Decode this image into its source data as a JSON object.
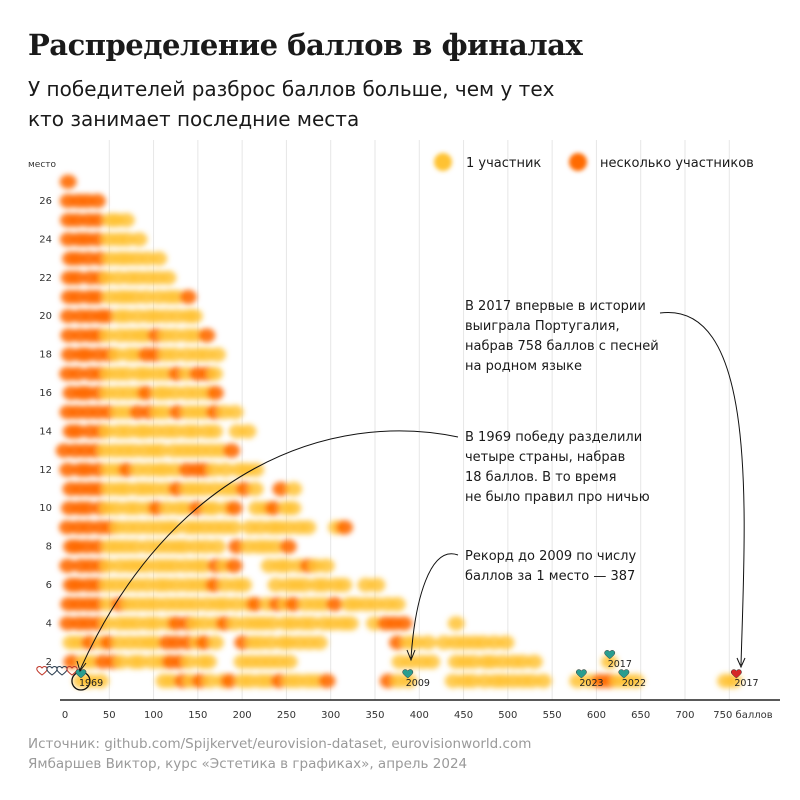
{
  "title": "Распределение баллов в финалах",
  "subtitle": "У победителей разброс баллов больше, чем у тех кто занимает последние места",
  "source": "Источник: github.com/Spijkervet/eurovision-dataset, eurovisionworld.com",
  "credit": "Ямбаршев Виктор, курс «Эстетика в графиках», апрель 2024",
  "legend": {
    "single": "1 участник",
    "multi": "несколько участников"
  },
  "colors": {
    "single": "#ffc233",
    "multi": "#ff6a00",
    "grid": "#e6e6e6",
    "axis": "#222222"
  },
  "chart_data": {
    "type": "scatter",
    "title": "Распределение баллов в финалах",
    "ylabel": "место",
    "xlabel": "баллов",
    "xlim": [
      0,
      790
    ],
    "ylim": [
      0.5,
      27.5
    ],
    "xticks": [
      0,
      50,
      100,
      150,
      200,
      250,
      300,
      350,
      400,
      450,
      500,
      550,
      600,
      650,
      700,
      750
    ],
    "yticks": [
      2,
      4,
      6,
      8,
      10,
      12,
      14,
      16,
      18,
      20,
      22,
      24,
      26
    ],
    "x_unit_label": "750 баллов",
    "grid": "vertical",
    "legend_position": "top-right",
    "rows": [
      {
        "place": 1,
        "ranges": [
          [
            18,
            40
          ],
          [
            110,
            300
          ],
          [
            365,
            390
          ],
          [
            440,
            540
          ],
          [
            580,
            650
          ],
          [
            745,
            760
          ]
        ]
      },
      {
        "place": 2,
        "ranges": [
          [
            10,
            170
          ],
          [
            200,
            260
          ],
          [
            380,
            420
          ],
          [
            440,
            530
          ],
          [
            615,
            625
          ]
        ]
      },
      {
        "place": 3,
        "ranges": [
          [
            5,
            180
          ],
          [
            200,
            290
          ],
          [
            375,
            415
          ],
          [
            430,
            500
          ]
        ]
      },
      {
        "place": 4,
        "ranges": [
          [
            5,
            160
          ],
          [
            170,
            330
          ],
          [
            350,
            390
          ],
          [
            440,
            450
          ]
        ]
      },
      {
        "place": 5,
        "ranges": [
          [
            5,
            140
          ],
          [
            150,
            310
          ],
          [
            320,
            380
          ]
        ]
      },
      {
        "place": 6,
        "ranges": [
          [
            5,
            210
          ],
          [
            240,
            320
          ],
          [
            340,
            360
          ]
        ]
      },
      {
        "place": 7,
        "ranges": [
          [
            5,
            200
          ],
          [
            230,
            300
          ]
        ]
      },
      {
        "place": 8,
        "ranges": [
          [
            5,
            180
          ],
          [
            195,
            260
          ]
        ]
      },
      {
        "place": 9,
        "ranges": [
          [
            5,
            200
          ],
          [
            210,
            285
          ],
          [
            305,
            320
          ]
        ]
      },
      {
        "place": 10,
        "ranges": [
          [
            5,
            200
          ],
          [
            215,
            265
          ]
        ]
      },
      {
        "place": 11,
        "ranges": [
          [
            5,
            220
          ],
          [
            245,
            260
          ]
        ]
      },
      {
        "place": 12,
        "ranges": [
          [
            5,
            185
          ],
          [
            195,
            225
          ]
        ]
      },
      {
        "place": 13,
        "ranges": [
          [
            0,
            190
          ]
        ]
      },
      {
        "place": 14,
        "ranges": [
          [
            5,
            175
          ],
          [
            195,
            215
          ]
        ]
      },
      {
        "place": 15,
        "ranges": [
          [
            5,
            195
          ]
        ]
      },
      {
        "place": 16,
        "ranges": [
          [
            5,
            170
          ]
        ]
      },
      {
        "place": 17,
        "ranges": [
          [
            5,
            170
          ]
        ]
      },
      {
        "place": 18,
        "ranges": [
          [
            5,
            170
          ]
        ]
      },
      {
        "place": 19,
        "ranges": [
          [
            5,
            160
          ]
        ]
      },
      {
        "place": 20,
        "ranges": [
          [
            5,
            150
          ]
        ]
      },
      {
        "place": 21,
        "ranges": [
          [
            5,
            140
          ]
        ]
      },
      {
        "place": 22,
        "ranges": [
          [
            5,
            125
          ]
        ]
      },
      {
        "place": 23,
        "ranges": [
          [
            5,
            110
          ]
        ]
      },
      {
        "place": 24,
        "ranges": [
          [
            5,
            90
          ]
        ]
      },
      {
        "place": 25,
        "ranges": [
          [
            5,
            80
          ]
        ]
      },
      {
        "place": 26,
        "ranges": [
          [
            5,
            40
          ]
        ]
      },
      {
        "place": 27,
        "ranges": [
          [
            2,
            3
          ]
        ]
      }
    ],
    "winner_labels": [
      {
        "text": "1969",
        "x": 18,
        "place": 1
      },
      {
        "text": "2009",
        "x": 387,
        "place": 1
      },
      {
        "text": "2023",
        "x": 583,
        "place": 1
      },
      {
        "text": "2022",
        "x": 631,
        "place": 1
      },
      {
        "text": "2017",
        "x": 758,
        "place": 1
      },
      {
        "text": "2017",
        "x": 615,
        "place": 2
      }
    ],
    "annotations": [
      {
        "id": "a2017",
        "lines": [
          "В 2017 впервые в истории",
          "выиграла Португалия,",
          "набрав 758 баллов с песней",
          "на родном языке"
        ]
      },
      {
        "id": "a1969",
        "lines": [
          "В 1969 победу разделили",
          "четыре страны, набрав",
          "18 баллов. В то время",
          "не было правил про ничью"
        ]
      },
      {
        "id": "a2009",
        "lines": [
          "Рекорд до 2009 по числу",
          "баллов за 1 место — 387"
        ]
      }
    ]
  }
}
